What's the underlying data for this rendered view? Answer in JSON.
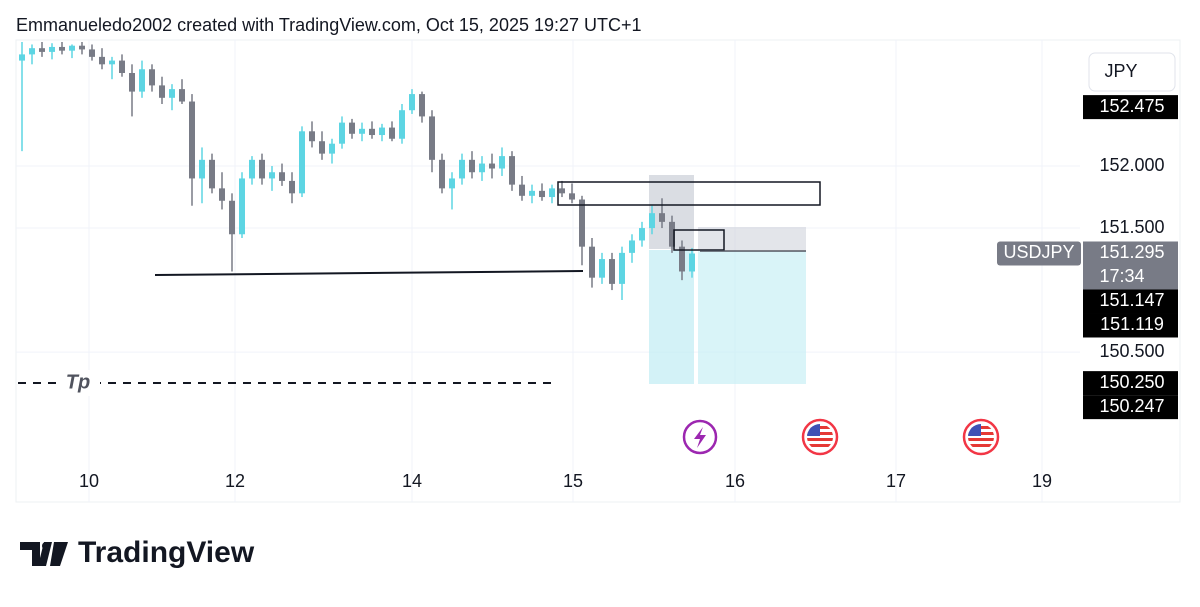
{
  "chart_data": {
    "type": "candlestick",
    "title": "Emmanueledo2002 created with TradingView.com, Oct 15, 2025 19:27 UTC+1",
    "currency": "JPY",
    "symbol": "USDJPY",
    "countdown": "17:34",
    "annotation": "Tp",
    "brand": "TradingView",
    "up_color": "#5dd5e3",
    "down_color": "#787b86",
    "open": [
      152.85,
      152.9,
      152.95,
      152.92,
      152.96,
      152.93,
      152.97,
      152.94,
      152.88,
      152.82,
      152.85,
      152.75,
      152.6,
      152.78,
      152.65,
      152.55,
      152.62,
      152.52,
      151.9,
      152.05,
      151.82,
      151.72,
      151.45,
      151.9,
      152.05,
      151.9,
      151.95,
      151.88,
      151.78,
      152.28,
      152.2,
      152.1,
      152.18,
      152.35,
      152.26,
      152.3,
      152.25,
      152.31,
      152.22,
      152.45,
      152.58,
      152.4,
      152.05,
      151.82,
      151.9,
      152.05,
      151.95,
      152.02,
      151.98,
      152.08,
      151.85,
      151.76,
      151.8,
      151.75,
      151.82,
      151.78,
      151.73,
      151.35,
      151.1,
      151.25,
      151.05,
      151.3,
      151.4,
      151.5,
      151.62,
      151.55,
      151.35,
      151.15
    ],
    "high": [
      153.0,
      152.98,
      153.0,
      152.99,
      153.0,
      152.98,
      153.0,
      152.98,
      152.95,
      152.88,
      152.9,
      152.82,
      152.85,
      152.82,
      152.72,
      152.66,
      152.7,
      152.58,
      152.15,
      152.1,
      151.95,
      151.78,
      151.95,
      152.08,
      152.1,
      152.0,
      152.02,
      151.95,
      152.32,
      152.36,
      152.28,
      152.22,
      152.4,
      152.38,
      152.35,
      152.36,
      152.34,
      152.36,
      152.5,
      152.62,
      152.6,
      152.45,
      152.1,
      151.95,
      152.1,
      152.12,
      152.08,
      152.1,
      152.15,
      152.12,
      151.92,
      151.85,
      151.86,
      151.85,
      151.88,
      151.86,
      151.76,
      151.42,
      151.3,
      151.3,
      151.35,
      151.45,
      151.55,
      151.68,
      151.74,
      151.6,
      151.4,
      151.34
    ],
    "low": [
      152.12,
      152.82,
      152.88,
      152.86,
      152.9,
      152.87,
      152.9,
      152.85,
      152.78,
      152.7,
      152.72,
      152.4,
      152.55,
      152.6,
      152.5,
      152.45,
      152.5,
      151.68,
      151.7,
      151.78,
      151.65,
      151.15,
      151.42,
      151.85,
      151.85,
      151.8,
      151.84,
      151.7,
      151.75,
      152.15,
      152.05,
      152.02,
      152.14,
      152.22,
      152.2,
      152.22,
      152.2,
      152.2,
      152.18,
      152.42,
      152.35,
      151.95,
      151.78,
      151.65,
      151.85,
      151.9,
      151.88,
      151.9,
      151.92,
      151.8,
      151.72,
      151.7,
      151.72,
      151.7,
      151.75,
      151.7,
      151.2,
      151.02,
      151.05,
      151.0,
      150.92,
      151.22,
      151.35,
      151.45,
      151.5,
      151.3,
      151.08,
      151.1
    ],
    "close": [
      152.9,
      152.95,
      152.92,
      152.96,
      152.93,
      152.97,
      152.94,
      152.88,
      152.82,
      152.85,
      152.75,
      152.6,
      152.78,
      152.65,
      152.55,
      152.62,
      152.52,
      151.9,
      152.05,
      151.82,
      151.72,
      151.45,
      151.9,
      152.05,
      151.9,
      151.95,
      151.88,
      151.78,
      152.28,
      152.2,
      152.1,
      152.18,
      152.35,
      152.26,
      152.3,
      152.25,
      152.31,
      152.22,
      152.45,
      152.58,
      152.4,
      152.05,
      151.82,
      151.9,
      152.05,
      151.95,
      152.02,
      151.98,
      152.08,
      151.85,
      151.76,
      151.8,
      151.75,
      151.82,
      151.78,
      151.73,
      151.35,
      151.1,
      151.25,
      151.05,
      151.3,
      151.4,
      151.5,
      151.62,
      151.55,
      151.35,
      151.15,
      151.295
    ],
    "xlim": [
      -0.6,
      105.8
    ],
    "xticks": [
      {
        "value": 6.7,
        "label": "10"
      },
      {
        "value": 21.3,
        "label": "12"
      },
      {
        "value": 39,
        "label": "14"
      },
      {
        "value": 55.1,
        "label": "15"
      },
      {
        "value": 71.3,
        "label": "16"
      },
      {
        "value": 87.4,
        "label": "17"
      },
      {
        "value": 102,
        "label": "19"
      }
    ],
    "ylim": [
      149.59,
      153.016
    ],
    "yticks": [
      {
        "value": 152,
        "label": "152.000"
      },
      {
        "value": 151.5,
        "label": "151.500"
      },
      {
        "value": 150.5,
        "label": "150.500"
      }
    ],
    "grid": true,
    "price_labels": [
      152.475,
      151.295,
      151.147,
      151.119,
      {
        "value": 150.25,
        "label": "150.250"
      },
      150.247
    ]
  }
}
